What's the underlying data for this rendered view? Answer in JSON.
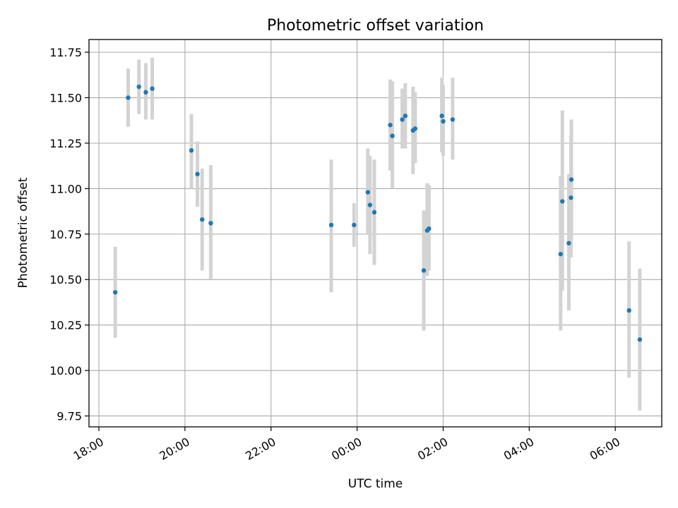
{
  "chart_data": {
    "type": "scatter",
    "title": "Photometric offset variation",
    "xlabel": "UTC time",
    "ylabel": "Photometric offset",
    "x_unit": "hours since 18:00 UTC (x-axis spans 18:00 to ~07:05 next day)",
    "xlim": [
      -0.23,
      13.08
    ],
    "ylim": [
      9.69,
      11.82
    ],
    "x_ticks": [
      {
        "x": 0,
        "label": "18:00"
      },
      {
        "x": 2,
        "label": "20:00"
      },
      {
        "x": 4,
        "label": "22:00"
      },
      {
        "x": 6,
        "label": "00:00"
      },
      {
        "x": 8,
        "label": "02:00"
      },
      {
        "x": 10,
        "label": "04:00"
      },
      {
        "x": 12,
        "label": "06:00"
      }
    ],
    "y_ticks": [
      {
        "y": 9.75,
        "label": "9.75"
      },
      {
        "y": 10.0,
        "label": "10.00"
      },
      {
        "y": 10.25,
        "label": "10.25"
      },
      {
        "y": 10.5,
        "label": "10.50"
      },
      {
        "y": 10.75,
        "label": "10.75"
      },
      {
        "y": 11.0,
        "label": "11.00"
      },
      {
        "y": 11.25,
        "label": "11.25"
      },
      {
        "y": 11.5,
        "label": "11.50"
      },
      {
        "y": 11.75,
        "label": "11.75"
      }
    ],
    "grid": true,
    "point_color": "#1f77b4",
    "errorbar_color": "#d3d3d3",
    "points": [
      {
        "x": 0.38,
        "y": 10.43,
        "lo": 10.18,
        "hi": 10.68
      },
      {
        "x": 0.68,
        "y": 11.5,
        "lo": 11.34,
        "hi": 11.66
      },
      {
        "x": 0.93,
        "y": 11.56,
        "lo": 11.41,
        "hi": 11.71
      },
      {
        "x": 1.09,
        "y": 11.53,
        "lo": 11.38,
        "hi": 11.69
      },
      {
        "x": 1.24,
        "y": 11.55,
        "lo": 11.38,
        "hi": 11.72
      },
      {
        "x": 2.15,
        "y": 11.21,
        "lo": 11.0,
        "hi": 11.41
      },
      {
        "x": 2.29,
        "y": 11.08,
        "lo": 10.9,
        "hi": 11.26
      },
      {
        "x": 2.4,
        "y": 10.83,
        "lo": 10.55,
        "hi": 11.11
      },
      {
        "x": 2.6,
        "y": 10.81,
        "lo": 10.5,
        "hi": 11.13
      },
      {
        "x": 5.4,
        "y": 10.8,
        "lo": 10.43,
        "hi": 11.16
      },
      {
        "x": 5.93,
        "y": 10.8,
        "lo": 10.68,
        "hi": 10.92
      },
      {
        "x": 6.25,
        "y": 10.98,
        "lo": 10.75,
        "hi": 11.22
      },
      {
        "x": 6.3,
        "y": 10.91,
        "lo": 10.64,
        "hi": 11.18
      },
      {
        "x": 6.4,
        "y": 10.87,
        "lo": 10.58,
        "hi": 11.16
      },
      {
        "x": 6.77,
        "y": 11.35,
        "lo": 11.1,
        "hi": 11.6
      },
      {
        "x": 6.82,
        "y": 11.29,
        "lo": 11.0,
        "hi": 11.59
      },
      {
        "x": 7.05,
        "y": 11.38,
        "lo": 11.22,
        "hi": 11.55
      },
      {
        "x": 7.12,
        "y": 11.4,
        "lo": 11.22,
        "hi": 11.58
      },
      {
        "x": 7.3,
        "y": 11.32,
        "lo": 11.08,
        "hi": 11.56
      },
      {
        "x": 7.35,
        "y": 11.33,
        "lo": 11.14,
        "hi": 11.53
      },
      {
        "x": 7.55,
        "y": 10.55,
        "lo": 10.22,
        "hi": 10.88
      },
      {
        "x": 7.63,
        "y": 10.77,
        "lo": 10.52,
        "hi": 11.03
      },
      {
        "x": 7.67,
        "y": 10.78,
        "lo": 10.55,
        "hi": 11.02
      },
      {
        "x": 7.97,
        "y": 11.4,
        "lo": 11.2,
        "hi": 11.61
      },
      {
        "x": 8.0,
        "y": 11.37,
        "lo": 11.18,
        "hi": 11.57
      },
      {
        "x": 8.22,
        "y": 11.38,
        "lo": 11.16,
        "hi": 11.61
      },
      {
        "x": 10.73,
        "y": 10.64,
        "lo": 10.22,
        "hi": 11.07
      },
      {
        "x": 10.77,
        "y": 10.93,
        "lo": 10.44,
        "hi": 11.43
      },
      {
        "x": 10.92,
        "y": 10.7,
        "lo": 10.33,
        "hi": 11.08
      },
      {
        "x": 10.97,
        "y": 10.95,
        "lo": 10.62,
        "hi": 11.29
      },
      {
        "x": 10.98,
        "y": 11.05,
        "lo": 10.72,
        "hi": 11.38
      },
      {
        "x": 12.32,
        "y": 10.33,
        "lo": 9.96,
        "hi": 10.71
      },
      {
        "x": 12.57,
        "y": 10.17,
        "lo": 9.78,
        "hi": 10.56
      }
    ]
  }
}
